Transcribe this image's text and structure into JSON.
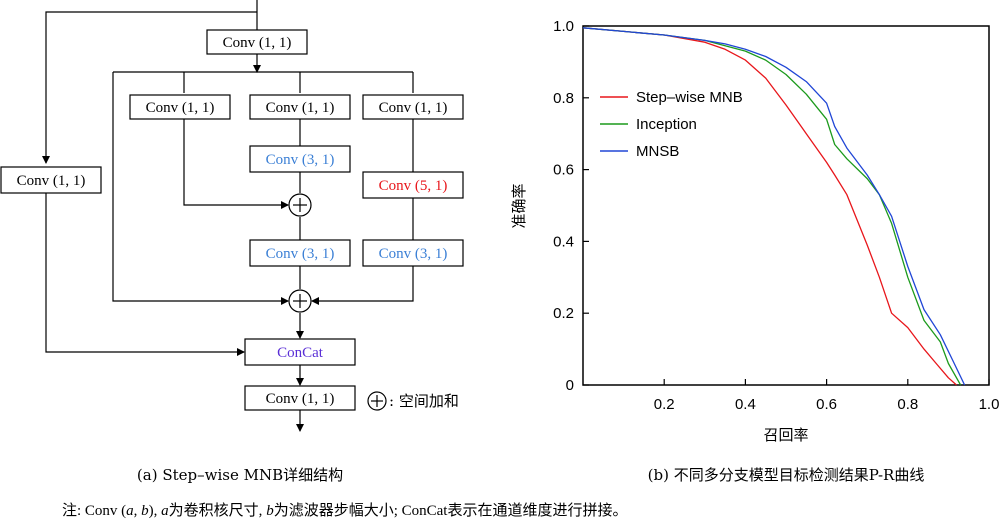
{
  "diagram": {
    "blocks": {
      "conv_top": "Conv (1, 1)",
      "branch1_conv": "Conv (1, 1)",
      "branch2_conv": "Conv (1, 1)",
      "branch3_conv": "Conv (1, 1)",
      "branch2_conv31a": "Conv (3, 1)",
      "branch3_conv51": "Conv (5, 1)",
      "branch2_conv31b": "Conv (3, 1)",
      "branch3_conv31": "Conv (3, 1)",
      "left_conv": "Conv (1, 1)",
      "concat": "ConCat",
      "conv_bottom": "Conv (1, 1)"
    },
    "legend": ": 空间加和",
    "caption": "(a) Step–wise MNB详细结构",
    "colors": {
      "blue": "#3a7fd5",
      "red": "#e8161b",
      "purple": "#5a2fd6"
    }
  },
  "chart_data": {
    "type": "line",
    "xlabel": "召回率",
    "ylabel": "准确率",
    "xlim": [
      0,
      1.0
    ],
    "ylim": [
      0,
      1.0
    ],
    "xticks": [
      "0.2",
      "0.4",
      "0.6",
      "0.8",
      "1.0"
    ],
    "yticks": [
      "0",
      "0.2",
      "0.4",
      "0.6",
      "0.8",
      "1.0"
    ],
    "legend_position": "upper-left",
    "caption": "(b) 不同多分支模型目标检测结果P-R曲线",
    "series": [
      {
        "name": "Step–wise MNB",
        "color": "#e8161b",
        "points": [
          [
            0,
            0.995
          ],
          [
            0.1,
            0.985
          ],
          [
            0.2,
            0.975
          ],
          [
            0.3,
            0.955
          ],
          [
            0.35,
            0.935
          ],
          [
            0.4,
            0.905
          ],
          [
            0.45,
            0.855
          ],
          [
            0.5,
            0.78
          ],
          [
            0.55,
            0.7
          ],
          [
            0.6,
            0.62
          ],
          [
            0.62,
            0.585
          ],
          [
            0.65,
            0.53
          ],
          [
            0.7,
            0.39
          ],
          [
            0.73,
            0.3
          ],
          [
            0.76,
            0.2
          ],
          [
            0.8,
            0.16
          ],
          [
            0.84,
            0.1
          ],
          [
            0.87,
            0.06
          ],
          [
            0.9,
            0.02
          ],
          [
            0.92,
            0
          ]
        ]
      },
      {
        "name": "Inception",
        "color": "#1c9a1c",
        "points": [
          [
            0,
            0.995
          ],
          [
            0.1,
            0.985
          ],
          [
            0.2,
            0.975
          ],
          [
            0.3,
            0.96
          ],
          [
            0.35,
            0.945
          ],
          [
            0.4,
            0.93
          ],
          [
            0.45,
            0.905
          ],
          [
            0.5,
            0.865
          ],
          [
            0.55,
            0.81
          ],
          [
            0.6,
            0.74
          ],
          [
            0.62,
            0.67
          ],
          [
            0.65,
            0.63
          ],
          [
            0.7,
            0.575
          ],
          [
            0.73,
            0.53
          ],
          [
            0.76,
            0.45
          ],
          [
            0.8,
            0.3
          ],
          [
            0.84,
            0.18
          ],
          [
            0.88,
            0.12
          ],
          [
            0.9,
            0.06
          ],
          [
            0.93,
            0
          ]
        ]
      },
      {
        "name": "MNSB",
        "color": "#2046d6",
        "points": [
          [
            0,
            0.995
          ],
          [
            0.1,
            0.985
          ],
          [
            0.2,
            0.975
          ],
          [
            0.3,
            0.96
          ],
          [
            0.35,
            0.95
          ],
          [
            0.4,
            0.935
          ],
          [
            0.45,
            0.915
          ],
          [
            0.5,
            0.885
          ],
          [
            0.55,
            0.845
          ],
          [
            0.6,
            0.785
          ],
          [
            0.62,
            0.72
          ],
          [
            0.65,
            0.66
          ],
          [
            0.7,
            0.585
          ],
          [
            0.73,
            0.53
          ],
          [
            0.76,
            0.47
          ],
          [
            0.8,
            0.33
          ],
          [
            0.84,
            0.21
          ],
          [
            0.88,
            0.14
          ],
          [
            0.91,
            0.07
          ],
          [
            0.94,
            0
          ]
        ]
      }
    ]
  }
}
